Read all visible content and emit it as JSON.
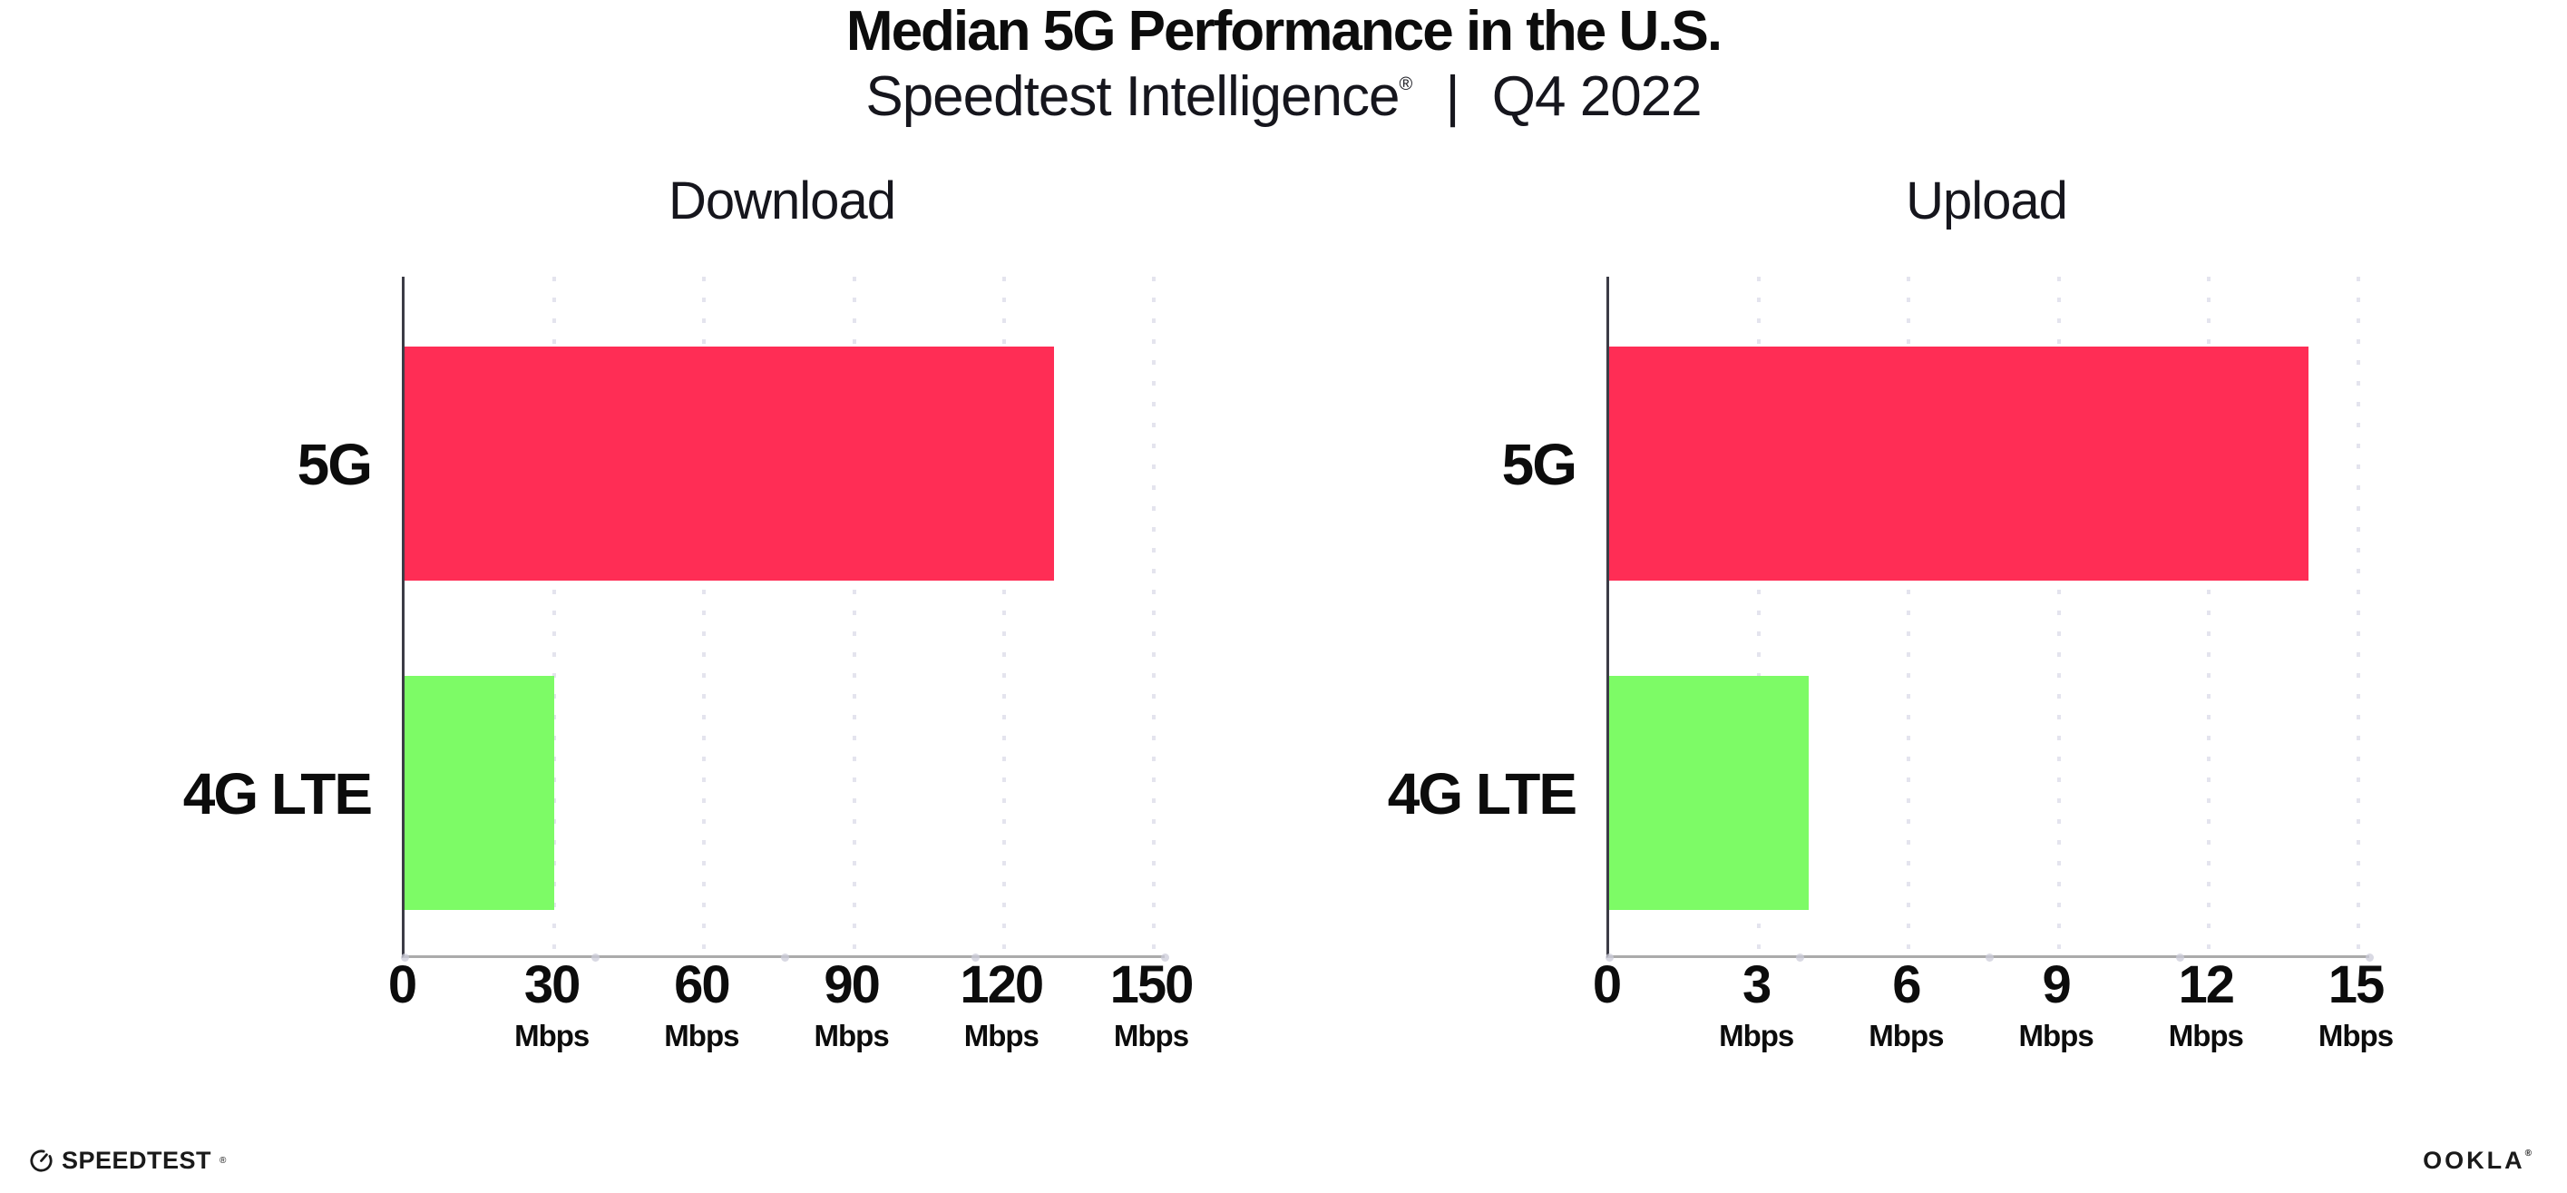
{
  "header": {
    "title": "Median 5G Performance in the U.S.",
    "subtitle": {
      "brand": "Speedtest Intelligence",
      "registered": "®",
      "separator": "|",
      "period": "Q4 2022"
    }
  },
  "chart_data": [
    {
      "type": "bar",
      "orientation": "horizontal",
      "title": "Download",
      "categories": [
        "5G",
        "4G LTE"
      ],
      "values": [
        130,
        30
      ],
      "unit": "Mbps",
      "xlim": [
        0,
        150
      ],
      "xticks": [
        0,
        30,
        60,
        90,
        120,
        150
      ],
      "xtick_unit": "Mbps",
      "bar_colors": [
        "#FF2D55",
        "#7DFB66"
      ],
      "grid": "dotted-vertical",
      "legend": "none"
    },
    {
      "type": "bar",
      "orientation": "horizontal",
      "title": "Upload",
      "categories": [
        "5G",
        "4G LTE"
      ],
      "values": [
        14,
        4
      ],
      "unit": "Mbps",
      "xlim": [
        0,
        15
      ],
      "xticks": [
        0,
        3,
        6,
        9,
        12,
        15
      ],
      "xtick_unit": "Mbps",
      "bar_colors": [
        "#FF2D55",
        "#7DFB66"
      ],
      "grid": "dotted-vertical",
      "legend": "none"
    }
  ],
  "footer": {
    "speedtest_label": "SPEEDTEST",
    "speedtest_mark": "®",
    "ookla_label": "OOKLA",
    "ookla_mark": "®"
  },
  "colors": {
    "bar_5g": "#FF2D55",
    "bar_4g_lte": "#7DFB66",
    "gridline": "#E4E4EE",
    "x_axis": "#ABABAB",
    "y_axis": "#3C3C46",
    "text": "#111111"
  }
}
